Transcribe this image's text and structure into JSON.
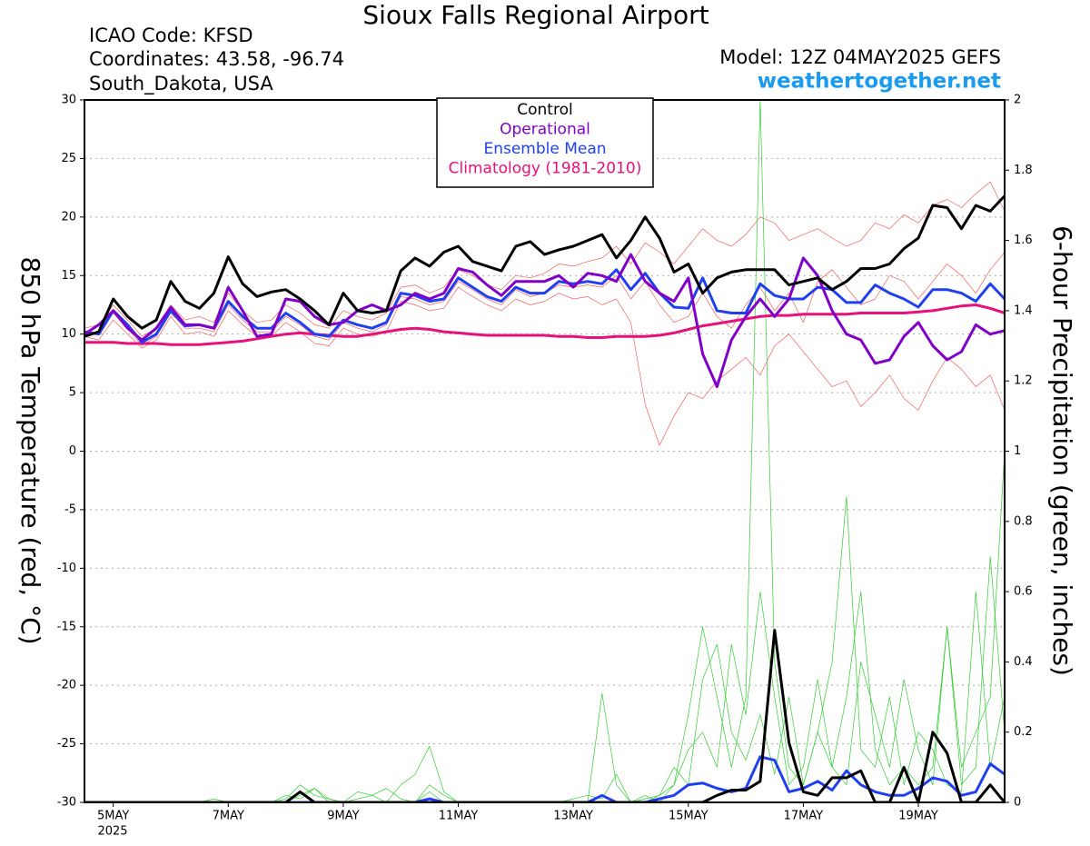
{
  "chart_data": {
    "type": "line",
    "title": "Sioux Falls Regional Airport",
    "info_lines": [
      "ICAO Code: KFSD",
      "Coordinates: 43.58, -96.74",
      "South_Dakota, USA"
    ],
    "model": "Model: 12Z 04MAY2025 GEFS",
    "source": "weathertogether.net",
    "ylabel": "850 hPa Temperature (red, °C)",
    "y2label": "6-hour Precipitation (green, inches)",
    "year_label": "2025",
    "grid": true,
    "legend": "top",
    "xlim": [
      4.5,
      20.5
    ],
    "xticks": [
      {
        "value": 5,
        "label": "5MAY"
      },
      {
        "value": 7,
        "label": "7MAY"
      },
      {
        "value": 9,
        "label": "9MAY"
      },
      {
        "value": 11,
        "label": "11MAY"
      },
      {
        "value": 13,
        "label": "13MAY"
      },
      {
        "value": 15,
        "label": "15MAY"
      },
      {
        "value": 17,
        "label": "17MAY"
      },
      {
        "value": 19,
        "label": "19MAY"
      }
    ],
    "ylim": [
      -30,
      30
    ],
    "yticks": [
      -30,
      -25,
      -20,
      -15,
      -10,
      -5,
      0,
      5,
      10,
      15,
      20,
      25,
      30
    ],
    "y2lim": [
      0,
      2
    ],
    "y2ticks": [
      0,
      0.2,
      0.4,
      0.6,
      0.8,
      1,
      1.2,
      1.4,
      1.6,
      1.8,
      2
    ],
    "x": [
      4.5,
      4.75,
      5,
      5.25,
      5.5,
      5.75,
      6,
      6.25,
      6.5,
      6.75,
      7,
      7.25,
      7.5,
      7.75,
      8,
      8.25,
      8.5,
      8.75,
      9,
      9.25,
      9.5,
      9.75,
      10,
      10.25,
      10.5,
      10.75,
      11,
      11.25,
      11.5,
      11.75,
      12,
      12.25,
      12.5,
      12.75,
      13,
      13.25,
      13.5,
      13.75,
      14,
      14.25,
      14.5,
      14.75,
      15,
      15.25,
      15.5,
      15.75,
      16,
      16.25,
      16.5,
      16.75,
      17,
      17.25,
      17.5,
      17.75,
      18,
      18.25,
      18.5,
      18.75,
      19,
      19.25,
      19.5,
      19.75,
      20,
      20.25,
      20.5
    ],
    "series": [
      {
        "color": "#f06060",
        "linewidth": 0.7,
        "values": [
          10.5,
          10.8,
          12.5,
          11.2,
          9.8,
          10.5,
          12.5,
          11.2,
          11.5,
          11.0,
          13.5,
          12.0,
          11.0,
          11.2,
          12.5,
          11.8,
          10.8,
          10.5,
          12.0,
          11.5,
          11.2,
          11.8,
          14.0,
          14.2,
          13.5,
          14.0,
          15.5,
          15.0,
          14.2,
          13.8,
          15.0,
          14.8,
          15.2,
          16.0,
          15.8,
          16.2,
          16.5,
          17.5,
          16.0,
          17.8,
          17.0,
          16.0,
          17.5,
          19.0,
          18.0,
          17.5,
          18.5,
          20.0,
          19.5,
          18.0,
          18.5,
          19.0,
          18.2,
          17.5,
          18.0,
          19.5,
          19.0,
          20.2,
          19.5,
          21.0,
          21.5,
          20.8,
          22.0,
          23.0,
          20.5
        ]
      },
      {
        "color": "#f06060",
        "linewidth": 0.7,
        "values": [
          9.8,
          9.5,
          11.2,
          10.0,
          8.8,
          9.5,
          11.5,
          10.0,
          10.2,
          9.8,
          12.0,
          10.8,
          9.8,
          9.8,
          11.0,
          10.2,
          9.2,
          9.0,
          10.5,
          10.0,
          9.8,
          10.2,
          12.8,
          12.5,
          12.0,
          12.2,
          14.0,
          13.2,
          12.5,
          12.0,
          13.0,
          12.5,
          12.8,
          13.5,
          13.0,
          13.2,
          12.5,
          13.0,
          11.0,
          4.0,
          0.5,
          3.0,
          5.0,
          4.5,
          6.0,
          7.0,
          8.0,
          6.5,
          9.0,
          10.0,
          8.5,
          7.0,
          5.5,
          6.0,
          3.8,
          5.0,
          6.5,
          4.5,
          3.5,
          6.0,
          8.0,
          7.0,
          5.5,
          6.5,
          3.5
        ]
      },
      {
        "color": "#f06060",
        "linewidth": 0.7,
        "values": [
          10.0,
          10.2,
          11.8,
          10.5,
          9.0,
          9.8,
          11.8,
          10.5,
          10.5,
          10.2,
          12.5,
          11.2,
          10.2,
          10.2,
          11.5,
          10.8,
          9.8,
          9.5,
          11.0,
          10.5,
          10.2,
          10.8,
          13.2,
          13.0,
          12.5,
          12.8,
          14.5,
          13.8,
          13.0,
          12.5,
          13.8,
          13.2,
          13.5,
          14.2,
          14.0,
          14.2,
          14.0,
          15.0,
          13.0,
          14.5,
          12.5,
          11.0,
          11.5,
          13.5,
          11.5,
          10.5,
          12.5,
          14.0,
          12.0,
          13.5,
          11.0,
          14.5,
          15.5,
          14.0,
          12.5,
          13.0,
          15.0,
          14.5,
          13.0,
          14.5,
          16.0,
          15.0,
          13.5,
          15.5,
          17.0
        ]
      },
      {
        "color": "#33cc33",
        "linewidth": 0.7,
        "axis": "y2",
        "values": [
          0,
          0,
          0,
          0,
          0,
          0,
          0,
          0,
          0,
          0,
          0,
          0,
          0,
          0,
          0,
          0.02,
          0.04,
          0.01,
          0,
          0,
          0,
          0,
          0,
          0,
          0.03,
          0,
          0,
          0,
          0,
          0,
          0,
          0,
          0,
          0,
          0,
          0,
          0,
          0,
          0,
          0,
          0.02,
          0.05,
          0.25,
          0.5,
          0.3,
          0.1,
          0.3,
          2.0,
          0.4,
          0.1,
          0.05,
          0.2,
          0.1,
          0.3,
          0.6,
          0.15,
          0.05,
          0.1,
          0.05,
          0.1,
          0.5,
          0.1,
          0.2,
          0.3,
          1.0
        ]
      },
      {
        "color": "#33cc33",
        "linewidth": 0.7,
        "axis": "y2",
        "values": [
          0,
          0,
          0,
          0,
          0,
          0,
          0,
          0,
          0,
          0,
          0,
          0,
          0,
          0,
          0.02,
          0.01,
          0.04,
          0,
          0,
          0.03,
          0.02,
          0,
          0.05,
          0.08,
          0.16,
          0.03,
          0,
          0,
          0,
          0,
          0,
          0,
          0,
          0,
          0,
          0,
          0.31,
          0.05,
          0,
          0.01,
          0.02,
          0.1,
          0.05,
          0.35,
          0.45,
          0.2,
          0.12,
          0.25,
          0.08,
          0.3,
          0.05,
          0.2,
          0.4,
          0.87,
          0.15,
          0.1,
          0.3,
          0.05,
          0.2,
          0.15,
          0.05,
          0.03,
          0.6,
          0.1,
          0.3
        ]
      },
      {
        "color": "#33cc33",
        "linewidth": 0.7,
        "axis": "y2",
        "values": [
          0,
          0,
          0,
          0,
          0,
          0,
          0,
          0,
          0,
          0.01,
          0,
          0,
          0,
          0,
          0.01,
          0.05,
          0.02,
          0.01,
          0,
          0.01,
          0.02,
          0.04,
          0.01,
          0,
          0.05,
          0.02,
          0,
          0,
          0,
          0,
          0,
          0,
          0,
          0,
          0.01,
          0.02,
          0.01,
          0.08,
          0,
          0.02,
          0,
          0.05,
          0.15,
          0.2,
          0.1,
          0.45,
          0.25,
          0.6,
          0.3,
          0.05,
          0.1,
          0.35,
          0.1,
          0.05,
          0.4,
          0.25,
          0.1,
          0.35,
          0.15,
          0.05,
          0.5,
          0.05,
          0.1,
          0.7,
          0.2
        ]
      },
      {
        "name": "Climatology (1981-2010)",
        "color": "#e8107a",
        "linewidth": 3,
        "values": [
          9.3,
          9.3,
          9.3,
          9.2,
          9.2,
          9.2,
          9.1,
          9.1,
          9.1,
          9.2,
          9.3,
          9.4,
          9.6,
          9.8,
          10.0,
          10.1,
          10.0,
          9.9,
          9.8,
          9.8,
          10.0,
          10.2,
          10.4,
          10.5,
          10.4,
          10.2,
          10.1,
          10.0,
          9.9,
          9.9,
          9.9,
          9.9,
          9.9,
          9.8,
          9.8,
          9.7,
          9.7,
          9.8,
          9.8,
          9.8,
          9.9,
          10.1,
          10.4,
          10.7,
          10.9,
          11.1,
          11.3,
          11.5,
          11.6,
          11.6,
          11.7,
          11.7,
          11.7,
          11.7,
          11.8,
          11.8,
          11.8,
          11.8,
          11.9,
          12.0,
          12.2,
          12.4,
          12.5,
          12.2,
          11.8
        ]
      },
      {
        "name": "Ensemble Mean",
        "color": "#2040f0",
        "linewidth": 3,
        "values": [
          10.2,
          10.0,
          12.0,
          10.8,
          9.3,
          10.0,
          12.0,
          10.7,
          10.8,
          10.5,
          12.8,
          11.5,
          10.5,
          10.5,
          11.8,
          11.0,
          10.0,
          9.8,
          11.2,
          10.8,
          10.5,
          11.0,
          13.5,
          13.3,
          12.8,
          13.0,
          14.8,
          14.0,
          13.2,
          12.8,
          14.0,
          13.5,
          13.5,
          14.5,
          14.3,
          14.5,
          14.3,
          15.5,
          13.8,
          15.2,
          13.5,
          12.3,
          12.2,
          14.8,
          12.0,
          11.8,
          11.8,
          14.3,
          13.3,
          13.0,
          13.0,
          14.0,
          13.8,
          12.7,
          12.7,
          14.2,
          13.5,
          13.0,
          12.3,
          13.8,
          13.8,
          13.5,
          12.8,
          14.3,
          13.0
        ]
      },
      {
        "name": "Operational",
        "color": "#8000c8",
        "linewidth": 3,
        "values": [
          10.0,
          10.8,
          12.0,
          10.5,
          9.5,
          10.5,
          12.3,
          10.8,
          10.8,
          10.5,
          14.0,
          12.0,
          9.8,
          10.0,
          13.0,
          12.8,
          11.5,
          10.8,
          11.0,
          12.0,
          12.5,
          12.0,
          12.5,
          13.5,
          13.0,
          13.5,
          15.6,
          15.3,
          14.2,
          13.3,
          14.5,
          14.5,
          14.5,
          15.0,
          14.0,
          15.2,
          15.0,
          14.5,
          16.8,
          14.5,
          13.5,
          12.8,
          14.8,
          8.3,
          5.5,
          9.5,
          11.5,
          13.0,
          11.5,
          13.0,
          16.5,
          15.0,
          12.0,
          10.0,
          9.5,
          7.5,
          7.8,
          9.8,
          11.0,
          9.0,
          7.8,
          8.5,
          10.8,
          10.0,
          10.3
        ]
      },
      {
        "name": "Control",
        "color": "#000000",
        "linewidth": 3,
        "values": [
          9.8,
          10.2,
          13.0,
          11.5,
          10.5,
          11.2,
          14.5,
          12.8,
          12.2,
          13.5,
          16.6,
          14.3,
          13.2,
          13.6,
          13.8,
          13.0,
          12.0,
          10.8,
          13.5,
          12.0,
          11.8,
          12.0,
          15.4,
          16.5,
          15.8,
          17.0,
          17.5,
          16.2,
          15.8,
          15.4,
          17.5,
          17.9,
          16.8,
          17.2,
          17.5,
          18.0,
          18.5,
          16.5,
          18.0,
          20.0,
          18.2,
          15.3,
          16.0,
          13.5,
          14.8,
          15.3,
          15.5,
          15.5,
          15.5,
          14.2,
          14.5,
          14.8,
          13.8,
          14.5,
          15.6,
          15.6,
          16.0,
          17.3,
          18.2,
          21.0,
          20.8,
          19.0,
          21.0,
          20.5,
          21.8
        ]
      },
      {
        "color": "#2040f0",
        "linewidth": 3,
        "axis": "y2",
        "values": [
          0,
          0,
          0,
          0,
          0,
          0,
          0,
          0,
          0,
          0,
          0,
          0,
          0,
          0,
          0,
          0,
          0,
          0,
          0,
          0,
          0,
          0,
          0,
          0,
          0.01,
          0,
          0,
          0,
          0,
          0,
          0,
          0,
          0,
          0,
          0,
          0,
          0.02,
          0,
          0,
          0,
          0.01,
          0.02,
          0.05,
          0.055,
          0.04,
          0.03,
          0.04,
          0.13,
          0.12,
          0.03,
          0.04,
          0.06,
          0.035,
          0.09,
          0.05,
          0.03,
          0.02,
          0.02,
          0.04,
          0.07,
          0.06,
          0.02,
          0.03,
          0.11,
          0.08
        ]
      },
      {
        "color": "#000000",
        "linewidth": 3,
        "axis": "y2",
        "values": [
          0,
          0,
          0,
          0,
          0,
          0,
          0,
          0,
          0,
          0,
          0,
          0,
          0,
          0,
          0,
          0.03,
          0,
          0,
          0,
          0,
          0,
          0,
          0,
          0,
          0,
          0,
          0,
          0,
          0,
          0,
          0,
          0,
          0,
          0,
          0,
          0,
          0,
          0,
          0,
          0,
          0,
          0,
          0,
          0,
          0.02,
          0.035,
          0.035,
          0.06,
          0.49,
          0.17,
          0.03,
          0.02,
          0.07,
          0.07,
          0.09,
          0,
          0,
          0.1,
          0,
          0.2,
          0.14,
          0,
          0,
          0.05,
          0
        ]
      }
    ]
  }
}
